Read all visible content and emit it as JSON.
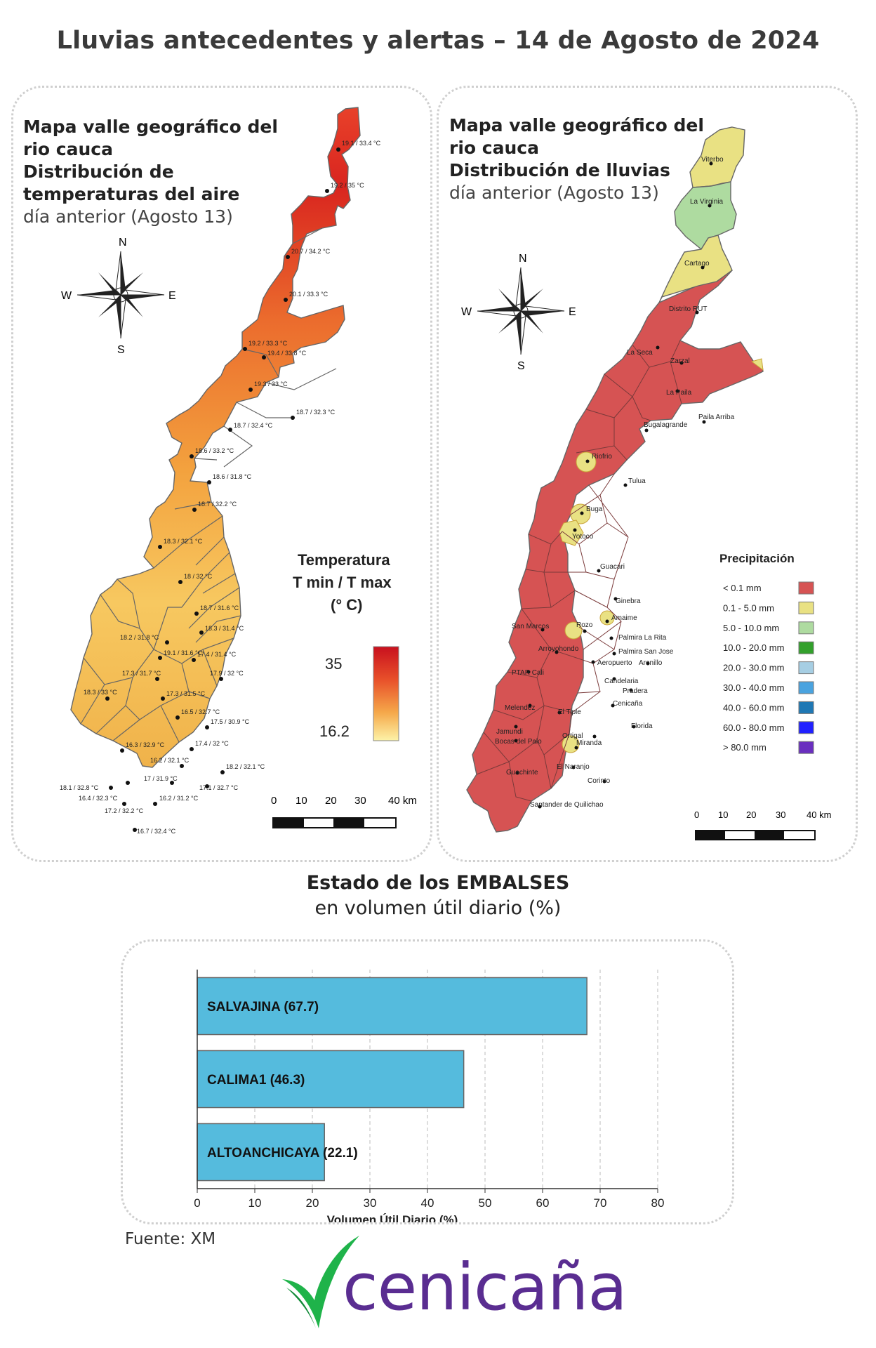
{
  "title": "Lluvias antecedentes y alertas – 14 de Agosto de 2024",
  "temp_panel": {
    "title_line1": "Mapa valle geográfico del",
    "title_line2": "rio cauca",
    "title_line3": "Distribución de",
    "title_line4": "temperaturas del aire",
    "title_line5": "día anterior (Agosto 13)",
    "legend_title1": "Temperatura",
    "legend_title2": "T min / T max",
    "legend_title3": "(° C)",
    "legend_max": "35",
    "legend_min": "16.2",
    "stations": [
      "19.1 / 33.4 °C",
      "19.2 / 35 °C",
      "20.7 / 34.2 °C",
      "20.1 / 33.3 °C",
      "19.2 / 33.3 °C",
      "19.4 / 33.8 °C",
      "19.3 / 33 °C",
      "18.7 / 32.3 °C",
      "18.7 / 32.4 °C",
      "18.6 / 33.2 °C",
      "18.6 / 31.8 °C",
      "18.7 / 32.2 °C",
      "18.3 / 32.1 °C",
      "18 / 32 °C",
      "18.7 / 31.6 °C",
      "18.3 / 31.4 °C",
      "18.2 / 31.8 °C",
      "19.1 / 31.6 °C",
      "17.4 / 31.4 °C",
      "17.3 / 31.7 °C",
      "17.9 / 32 °C",
      "18.3 / 33 °C",
      "17.3 / 31.5 °C",
      "16.5 / 32.7 °C",
      "17.5 / 30.9 °C",
      "16.3 / 32.9 °C",
      "17.4 / 32 °C",
      "16.2 / 32.1 °C",
      "18.2 / 32.1 °C",
      "18.1 / 32.8 °C",
      "16.4 / 32.3 °C",
      "17 / 31.9 °C",
      "17.1 / 32.7 °C",
      "17.2 / 32.2 °C",
      "16.2 / 31.2 °C",
      "16.7 / 32.4 °C"
    ],
    "scale_ticks": [
      "0",
      "10",
      "20",
      "30",
      "40 km"
    ]
  },
  "rain_panel": {
    "title_line1": "Mapa valle geográfico del",
    "title_line2": "rio cauca",
    "title_line3": "Distribución de lluvias",
    "title_line4": "día anterior (Agosto 13)",
    "legend_title": "Precipitación",
    "legend": [
      {
        "label": "< 0.1 mm",
        "color": "#d65353"
      },
      {
        "label": "0.1 - 5.0 mm",
        "color": "#e9e183"
      },
      {
        "label": "5.0 - 10.0 mm",
        "color": "#aedba0"
      },
      {
        "label": "10.0 - 20.0 mm",
        "color": "#33a02c"
      },
      {
        "label": "20.0 - 30.0 mm",
        "color": "#a6cee3"
      },
      {
        "label": "30.0 - 40.0 mm",
        "color": "#4aa3df"
      },
      {
        "label": "40.0 - 60.0 mm",
        "color": "#1f78b4"
      },
      {
        "label": "60.0 - 80.0 mm",
        "color": "#2020ff"
      },
      {
        "label": "> 80.0 mm",
        "color": "#6a2fbf"
      }
    ],
    "towns": [
      "Viterbo",
      "La Virginia",
      "Cartago",
      "Distrito RUT",
      "La Seca",
      "Zarzal",
      "La Paila",
      "Paila Arriba",
      "Bugalagrande",
      "Riofrio",
      "Tulua",
      "Buga",
      "Yotoco",
      "Guacari",
      "Ginebra",
      "Amaime",
      "San Marcos",
      "Rozo",
      "Palmira La Rita",
      "Arroyohondo",
      "Palmira San Jose",
      "Aeropuerto",
      "Arenillo",
      "PTAR Cali",
      "Candelaria",
      "Pradera",
      "Cenicaña",
      "Melendez",
      "El Tiple",
      "Florida",
      "Jamundi",
      "Ortigal",
      "Bocas del Palo",
      "Miranda",
      "Guachinte",
      "El Naranjo",
      "Corinto",
      "Santander de Quilichao"
    ],
    "scale_ticks": [
      "0",
      "10",
      "20",
      "30",
      "40 km"
    ]
  },
  "compass": {
    "n": "N",
    "s": "S",
    "e": "E",
    "w": "W"
  },
  "reservoirs": {
    "title": "Estado de los EMBALSES",
    "subtitle": "en volumen útil diario (%)",
    "bar_color": "#55bbdd"
  },
  "chart_data": {
    "type": "bar",
    "orientation": "horizontal",
    "categories": [
      "SALVAJINA (67.7)",
      "CALIMA1 (46.3)",
      "ALTOANCHICAYA (22.1)"
    ],
    "values": [
      67.7,
      46.3,
      22.1
    ],
    "xlabel": "Volumen Útil Diario (%)",
    "xlim": [
      0,
      80
    ],
    "xticks": [
      "0",
      "10",
      "20",
      "30",
      "40",
      "50",
      "60",
      "70",
      "80"
    ],
    "grid": "vertical dashed"
  },
  "source": "Fuente: XM",
  "logo_text": "cenicaña"
}
